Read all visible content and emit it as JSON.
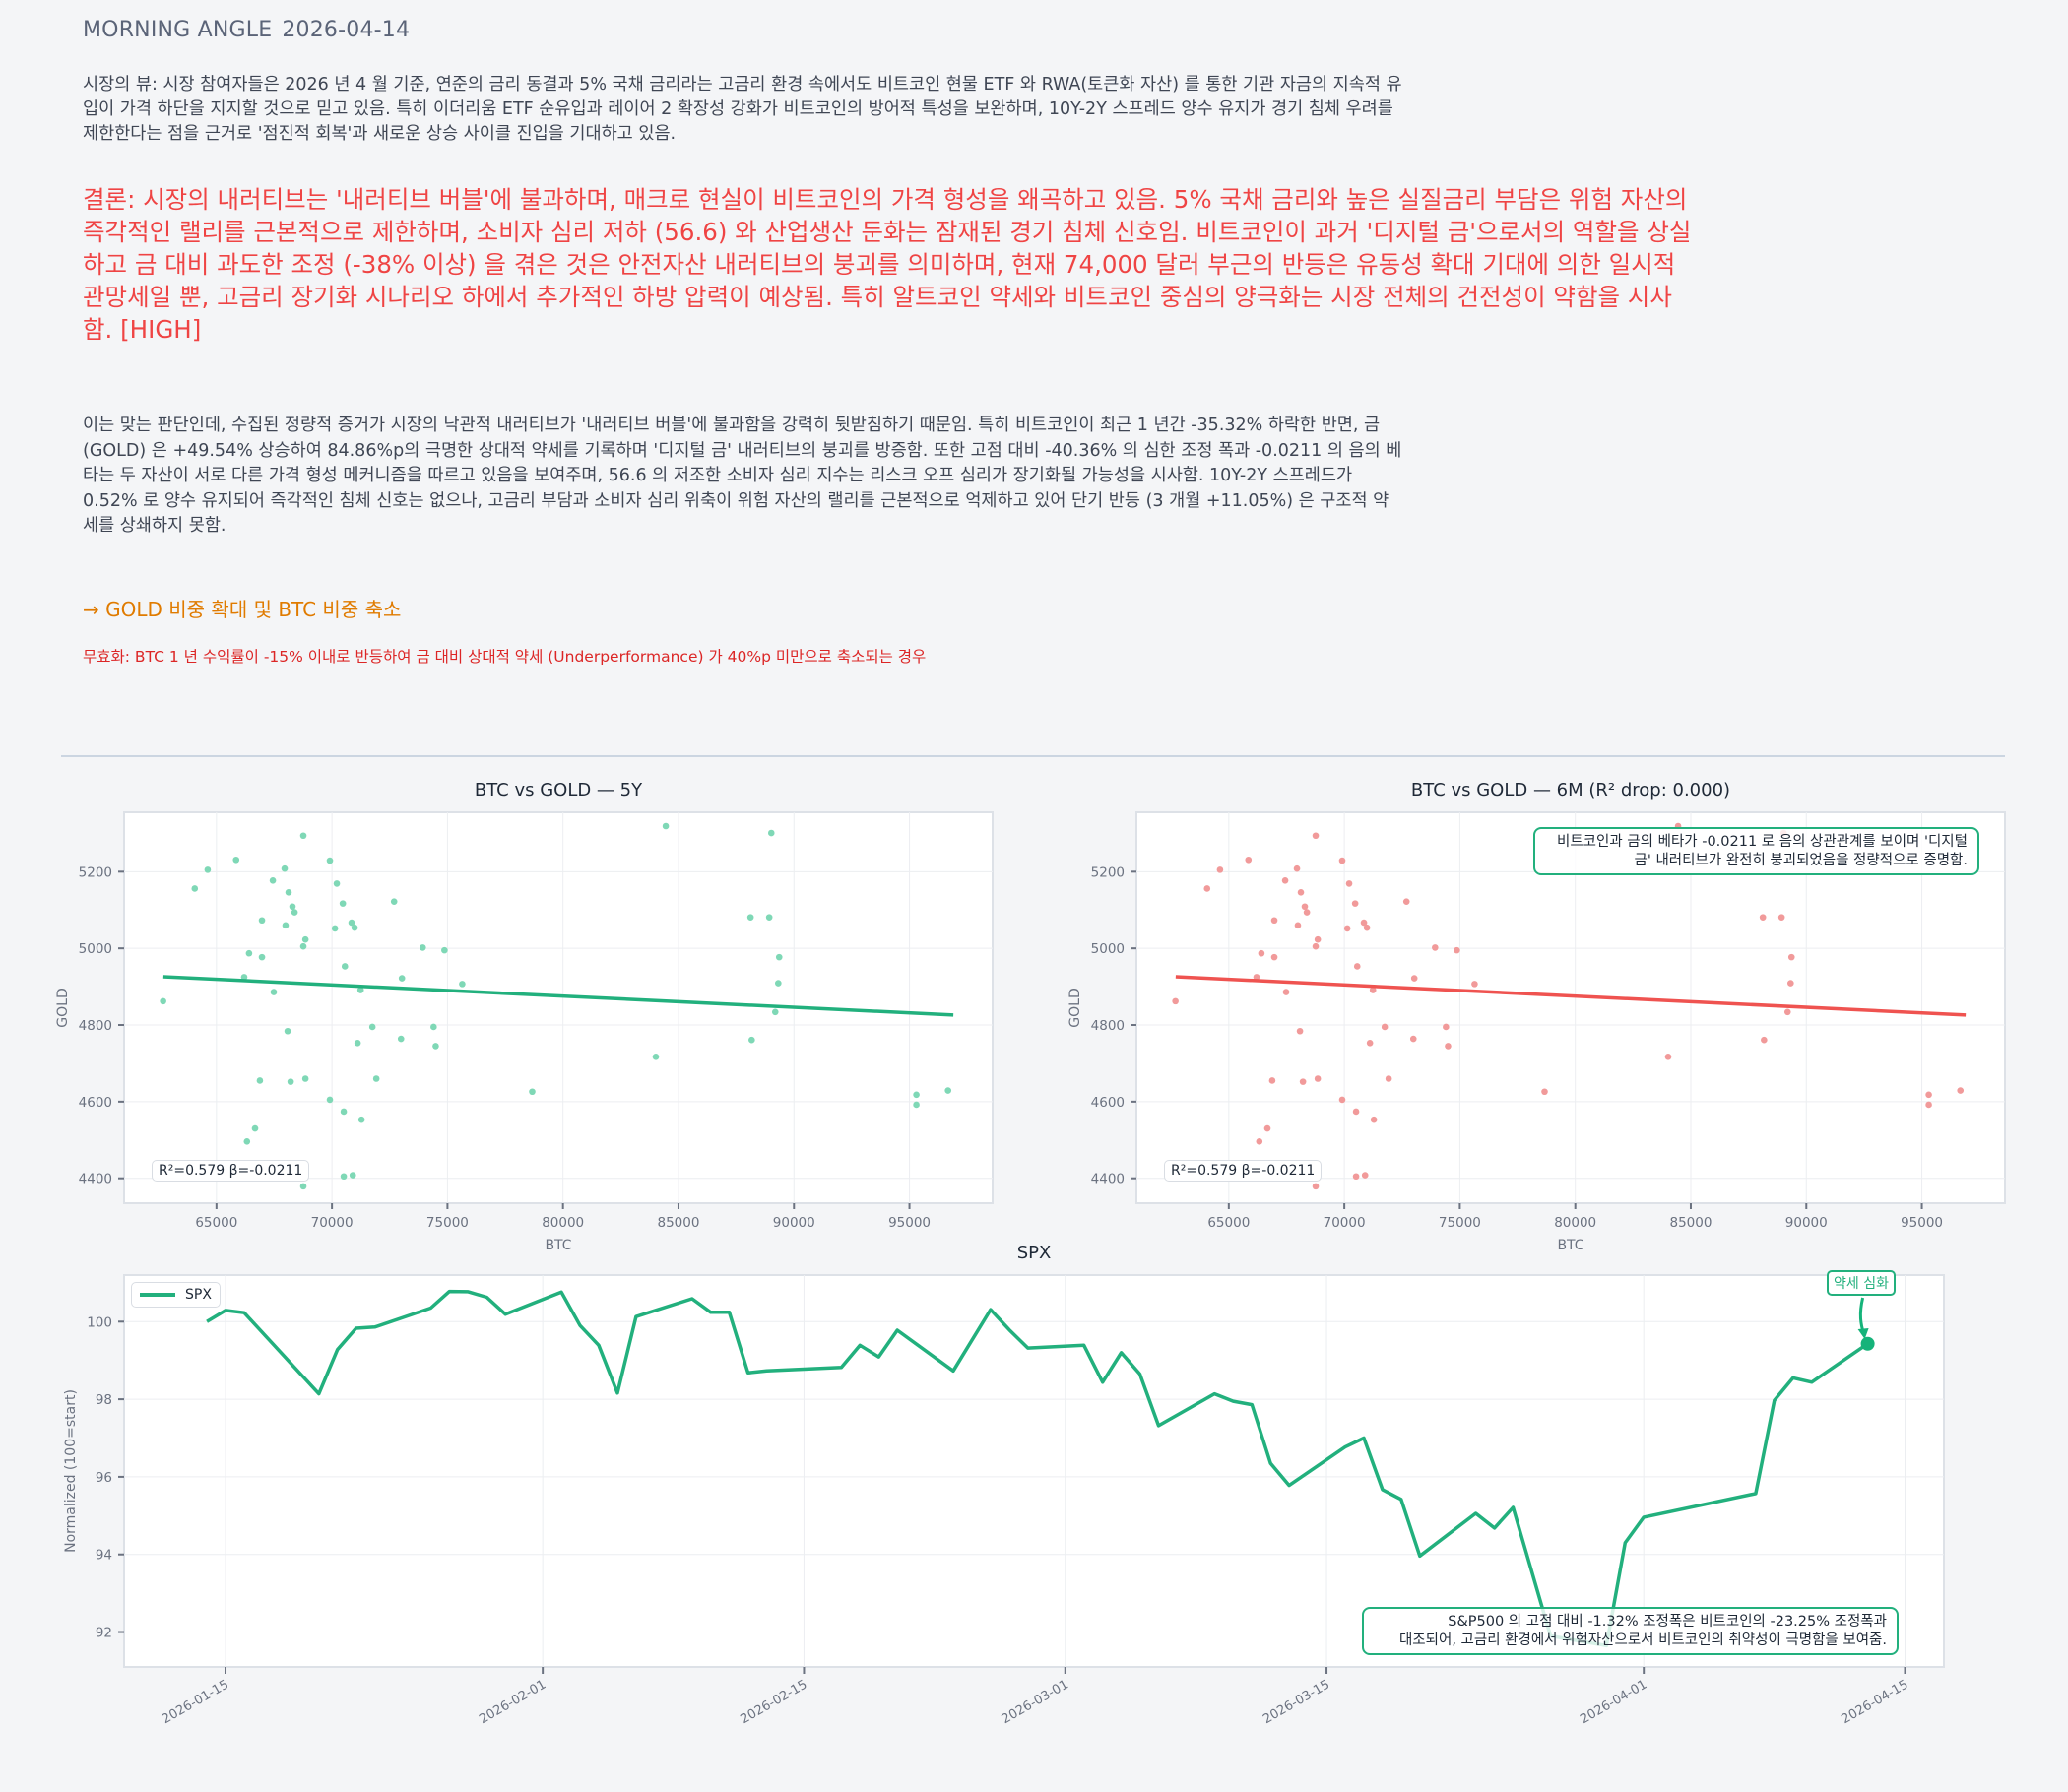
{
  "header": {
    "title": "MORNING ANGLE",
    "date": "2026-04-14"
  },
  "market_view": "시장의 뷰: 시장 참여자들은 2026 년 4 월 기준, 연준의 금리 동결과 5% 국채 금리라는 고금리 환경 속에서도 비트코인 현물 ETF 와 RWA(토큰화 자산) 를 통한 기관 자금의 지속적 유입이 가격 하단을 지지할 것으로 믿고 있음. 특히 이더리움 ETF 순유입과 레이어 2 확장성 강화가 비트코인의 방어적 특성을 보완하며, 10Y-2Y 스프레드 양수 유지가 경기 침체 우려를 제한한다는 점을 근거로 '점진적 회복'과 새로운 상승 사이클 진입을 기대하고 있음.",
  "conclusion": "결론: 시장의 내러티브는 '내러티브 버블'에 불과하며, 매크로 현실이 비트코인의 가격 형성을 왜곡하고 있음. 5% 국채 금리와 높은 실질금리 부담은 위험 자산의 즉각적인 랠리를 근본적으로 제한하며, 소비자 심리 저하 (56.6) 와 산업생산 둔화는 잠재된 경기 침체 신호임. 비트코인이 과거 '디지털 금'으로서의 역할을 상실하고 금 대비 과도한 조정 (-38% 이상) 을 겪은 것은 안전자산 내러티브의 붕괴를 의미하며, 현재 74,000 달러 부근의 반등은 유동성 확대 기대에 의한 일시적 관망세일 뿐, 고금리 장기화 시나리오 하에서 추가적인 하방 압력이 예상됨. 특히 알트코인 약세와 비트코인 중심의 양극화는 시장 전체의 건전성이 약함을 시사함.  [HIGH]",
  "evidence": "이는 맞는 판단인데, 수집된 정량적 증거가 시장의 낙관적 내러티브가 '내러티브 버블'에 불과함을 강력히 뒷받침하기 때문임. 특히 비트코인이 최근 1 년간 -35.32% 하락한 반면, 금 (GOLD) 은 +49.54% 상승하여 84.86%p의 극명한 상대적 약세를 기록하며 '디지털 금' 내러티브의 붕괴를 방증함. 또한 고점 대비 -40.36% 의 심한 조정 폭과 -0.0211 의 음의 베타는 두 자산이 서로 다른 가격 형성 메커니즘을 따르고 있음을 보여주며, 56.6 의 저조한 소비자 심리 지수는 리스크 오프 심리가 장기화될 가능성을 시사함. 10Y-2Y 스프레드가 0.52% 로 양수 유지되어 즉각적인 침체 신호는 없으나, 고금리 부담과 소비자 심리 위축이 위험 자산의 랠리를 근본적으로 억제하고 있어 단기 반등 (3 개월 +11.05%) 은 구조적 약세를 상쇄하지 못함.",
  "action": "→ GOLD 비중 확대 및 BTC 비중 축소",
  "invalidation": "무효화: BTC 1 년 수익률이 -15% 이내로 반등하여 금 대비 상대적 약세 (Underperformance) 가 40%p 미만으로 축소되는 경우",
  "colors": {
    "green": "#22b07d",
    "green_point": "#7fd8b6",
    "red": "#ef5350",
    "red_point": "#f19a9a",
    "conclusion": "#ef4444",
    "action": "#e07b00",
    "invalidation": "#dc2626"
  },
  "chart_data": [
    {
      "type": "scatter",
      "title": "BTC vs GOLD — 5Y",
      "xlabel": "BTC",
      "ylabel": "GOLD",
      "xlim": [
        61000,
        98600
      ],
      "ylim": [
        4335,
        5355
      ],
      "xticks": [
        65000,
        70000,
        75000,
        80000,
        85000,
        90000,
        95000
      ],
      "yticks": [
        4400,
        4600,
        4800,
        5000,
        5200
      ],
      "grid": true,
      "stat_label": "R²=0.579  β=-0.0211",
      "regression": {
        "x": [
          62700,
          96900
        ],
        "y": [
          4926,
          4826
        ]
      },
      "points": [
        [
          68760,
          5294
        ],
        [
          65850,
          5231
        ],
        [
          64620,
          5205
        ],
        [
          64060,
          5156
        ],
        [
          69910,
          5229
        ],
        [
          67950,
          5208
        ],
        [
          67440,
          5177
        ],
        [
          70210,
          5169
        ],
        [
          68120,
          5146
        ],
        [
          70470,
          5117
        ],
        [
          72690,
          5122
        ],
        [
          68290,
          5109
        ],
        [
          68380,
          5094
        ],
        [
          66970,
          5073
        ],
        [
          67990,
          5060
        ],
        [
          70850,
          5067
        ],
        [
          70980,
          5054
        ],
        [
          70130,
          5052
        ],
        [
          68850,
          5023
        ],
        [
          68760,
          5005
        ],
        [
          73930,
          5002
        ],
        [
          74870,
          4995
        ],
        [
          66410,
          4987
        ],
        [
          66970,
          4977
        ],
        [
          70560,
          4953
        ],
        [
          66200,
          4925
        ],
        [
          73030,
          4922
        ],
        [
          75640,
          4907
        ],
        [
          71240,
          4891
        ],
        [
          67480,
          4886
        ],
        [
          62690,
          4862
        ],
        [
          68080,
          4784
        ],
        [
          71750,
          4795
        ],
        [
          74400,
          4795
        ],
        [
          72990,
          4764
        ],
        [
          71110,
          4753
        ],
        [
          74490,
          4745
        ],
        [
          66880,
          4655
        ],
        [
          68850,
          4660
        ],
        [
          68210,
          4652
        ],
        [
          71920,
          4660
        ],
        [
          69910,
          4605
        ],
        [
          70510,
          4574
        ],
        [
          71280,
          4553
        ],
        [
          66670,
          4530
        ],
        [
          66320,
          4496
        ],
        [
          70510,
          4405
        ],
        [
          70900,
          4408
        ],
        [
          68760,
          4379
        ],
        [
          78670,
          4626
        ],
        [
          84450,
          5319
        ],
        [
          89020,
          5301
        ],
        [
          88120,
          5081
        ],
        [
          88930,
          5081
        ],
        [
          89360,
          4977
        ],
        [
          89320,
          4909
        ],
        [
          89190,
          4834
        ],
        [
          88170,
          4761
        ],
        [
          84020,
          4717
        ],
        [
          95300,
          4618
        ],
        [
          95300,
          4592
        ],
        [
          96670,
          4629
        ]
      ]
    },
    {
      "type": "scatter",
      "title": "BTC vs GOLD — 6M (R² drop: 0.000)",
      "xlabel": "BTC",
      "ylabel": "GOLD",
      "xlim": [
        61000,
        98600
      ],
      "ylim": [
        4335,
        5355
      ],
      "xticks": [
        65000,
        70000,
        75000,
        80000,
        85000,
        90000,
        95000
      ],
      "yticks": [
        4400,
        4600,
        4800,
        5000,
        5200
      ],
      "grid": true,
      "stat_label": "R²=0.579  β=-0.0211",
      "annotation": "비트코인과 금의 베타가 -0.0211 로 음의 상관관계를 보이며 '디지털 금' 내러티브가 완전히 붕괴되었음을 정량적으로 증명함.",
      "annotation_lines": [
        "비트코인과 금의 베타가 -0.0211 로 음의 상관관계를 보이며 '디지털",
        "금' 내러티브가 완전히 붕괴되었음을 정량적으로 증명함."
      ],
      "regression": {
        "x": [
          62700,
          96900
        ],
        "y": [
          4926,
          4826
        ]
      },
      "points": "same as 5Y"
    },
    {
      "type": "line",
      "title": "SPX",
      "xlabel": "",
      "ylabel": "Normalized (100=start)",
      "legend": [
        "SPX"
      ],
      "legend_position": "upper left",
      "ylim": [
        91.1,
        101.2
      ],
      "yticks": [
        92,
        94,
        96,
        98,
        100
      ],
      "xticks": [
        "2026-01-15",
        "2026-02-01",
        "2026-02-15",
        "2026-03-01",
        "2026-03-15",
        "2026-04-01",
        "2026-04-15"
      ],
      "grid": true,
      "end_marker_label": "약세 심화",
      "annotation_lines": [
        "S&P500 의 고점 대비 -1.32% 조정폭은 비트코인의 -23.25% 조정폭과",
        "대조되어, 고금리 환경에서 위험자산으로서 비트코인의 취약성이 극명함을 보여줌."
      ],
      "series": [
        {
          "name": "SPX",
          "x": [
            "2026-01-14",
            "2026-01-15",
            "2026-01-16",
            "2026-01-20",
            "2026-01-21",
            "2026-01-22",
            "2026-01-23",
            "2026-01-26",
            "2026-01-27",
            "2026-01-28",
            "2026-01-29",
            "2026-01-30",
            "2026-02-02",
            "2026-02-03",
            "2026-02-04",
            "2026-02-05",
            "2026-02-06",
            "2026-02-09",
            "2026-02-10",
            "2026-02-11",
            "2026-02-12",
            "2026-02-13",
            "2026-02-17",
            "2026-02-18",
            "2026-02-19",
            "2026-02-20",
            "2026-02-23",
            "2026-02-25",
            "2026-02-26",
            "2026-02-27",
            "2026-03-02",
            "2026-03-03",
            "2026-03-04",
            "2026-03-05",
            "2026-03-06",
            "2026-03-09",
            "2026-03-10",
            "2026-03-11",
            "2026-03-12",
            "2026-03-13",
            "2026-03-16",
            "2026-03-17",
            "2026-03-18",
            "2026-03-19",
            "2026-03-20",
            "2026-03-23",
            "2026-03-24",
            "2026-03-25",
            "2026-03-27",
            "2026-03-30",
            "2026-03-31",
            "2026-04-01",
            "2026-04-07",
            "2026-04-08",
            "2026-04-09",
            "2026-04-10",
            "2026-04-13"
          ],
          "values": [
            100.0,
            100.29,
            100.23,
            98.14,
            99.28,
            99.83,
            99.86,
            100.35,
            100.78,
            100.77,
            100.63,
            100.19,
            100.76,
            99.9,
            99.39,
            98.16,
            100.13,
            100.59,
            100.24,
            100.24,
            98.68,
            98.73,
            98.82,
            99.39,
            99.09,
            99.78,
            98.73,
            100.31,
            99.79,
            99.32,
            99.39,
            98.44,
            99.2,
            98.65,
            97.32,
            98.14,
            97.95,
            97.86,
            96.35,
            95.78,
            96.77,
            97.0,
            95.67,
            95.42,
            93.96,
            95.06,
            94.68,
            95.21,
            91.9,
            91.65,
            94.3,
            94.96,
            95.57,
            97.97,
            98.55,
            98.44,
            99.43
          ]
        }
      ]
    }
  ]
}
